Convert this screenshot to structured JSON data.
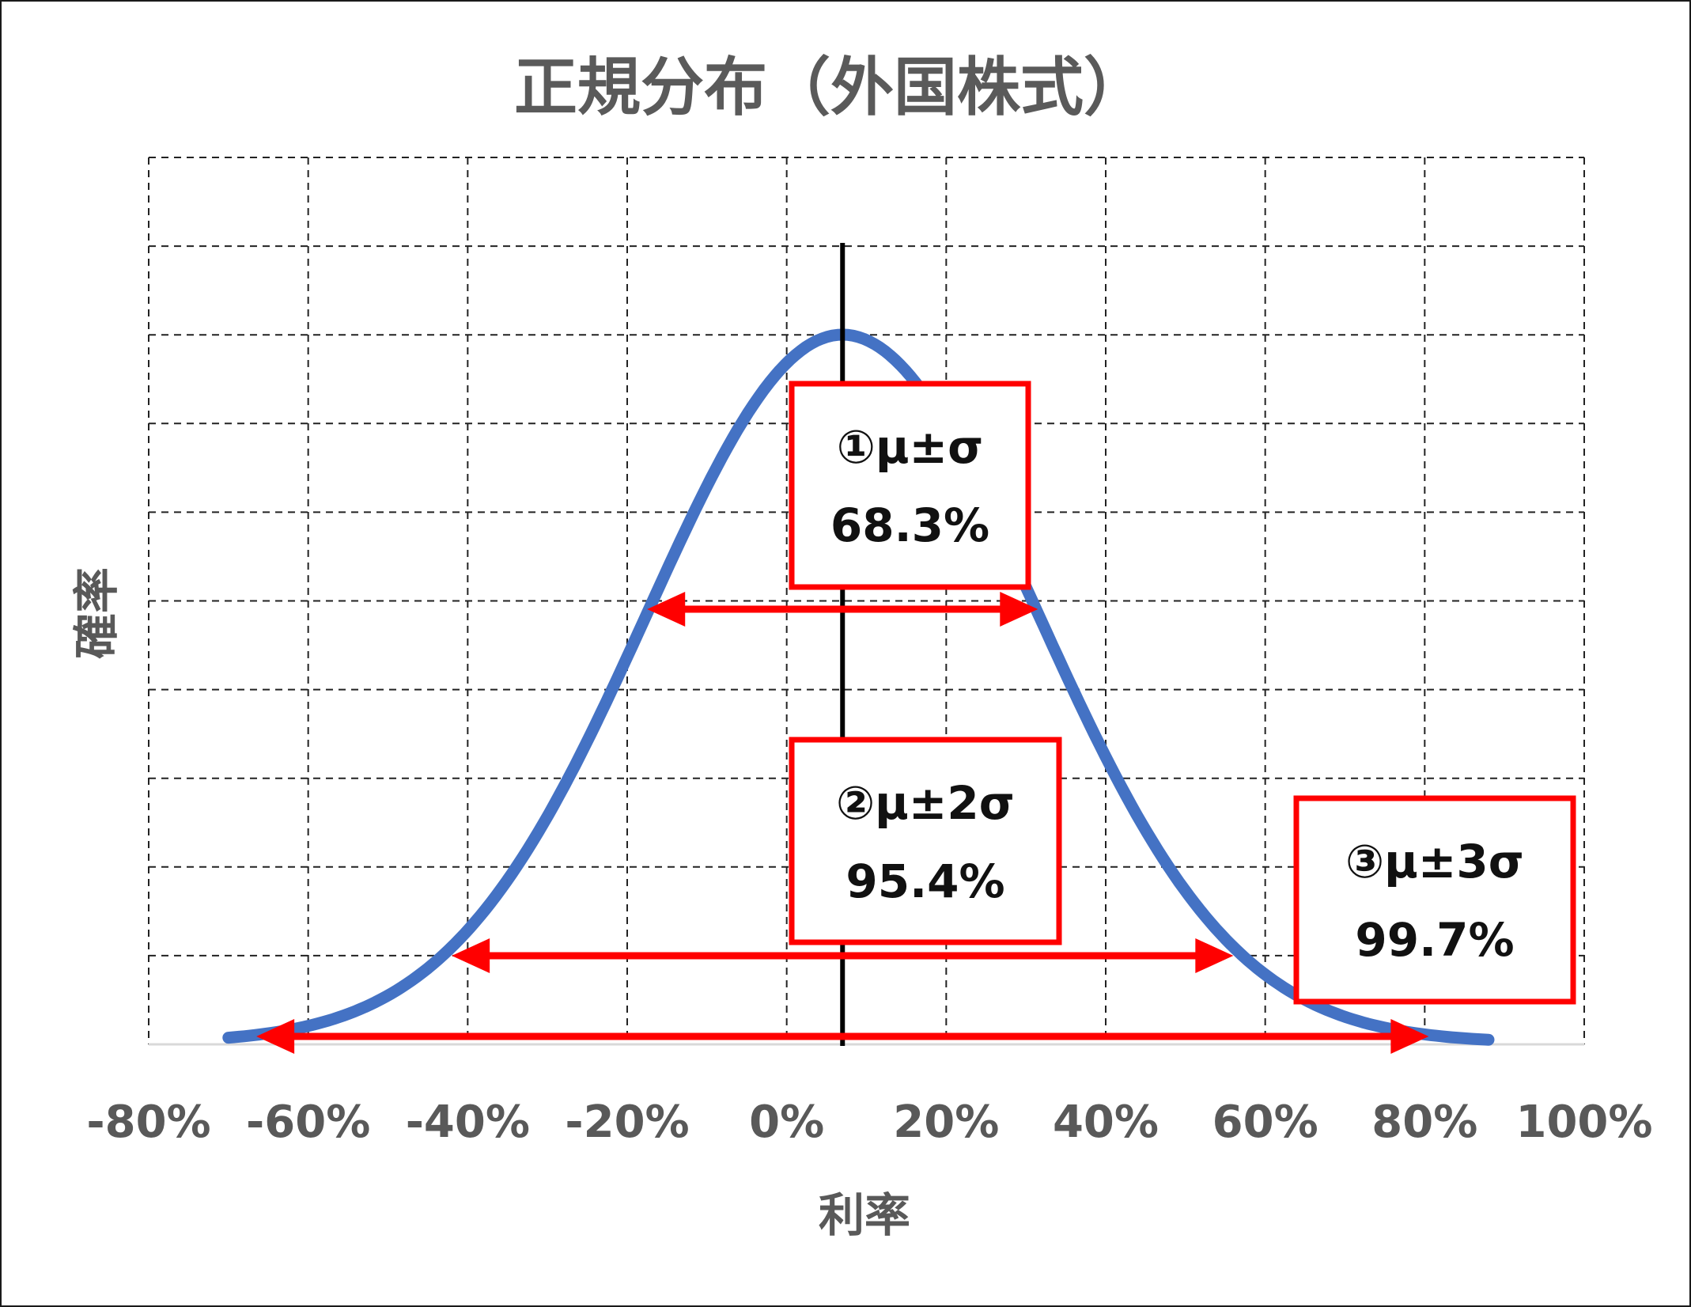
{
  "chart_data": {
    "type": "line",
    "title": "正規分布（外国株式）",
    "xlabel": "利率",
    "ylabel": "確率",
    "xlim": [
      -0.8,
      1.0
    ],
    "x_ticks": [
      "-80%",
      "-60%",
      "-40%",
      "-20%",
      "0%",
      "20%",
      "40%",
      "60%",
      "80%",
      "100%"
    ],
    "y_tick_labels_shown": false,
    "grid": true,
    "grid_style": "dashed",
    "series": [
      {
        "mean": 0.07,
        "std": 0.245,
        "x_range": [
          -0.7,
          0.88
        ],
        "color": "#4472C4"
      }
    ],
    "mean_line": {
      "x": 0.07,
      "color": "#000000"
    },
    "intervals": [
      {
        "label_line1": "①μ±σ",
        "label_line2": "68.3%",
        "from": -0.175,
        "to": 0.315
      },
      {
        "label_line1": "②μ±2σ",
        "label_line2": "95.4%",
        "from": -0.42,
        "to": 0.56
      },
      {
        "label_line1": "③μ±3σ",
        "label_line2": "99.7%",
        "from": -0.665,
        "to": 0.805
      }
    ],
    "annotation_color": "#FF0000"
  }
}
